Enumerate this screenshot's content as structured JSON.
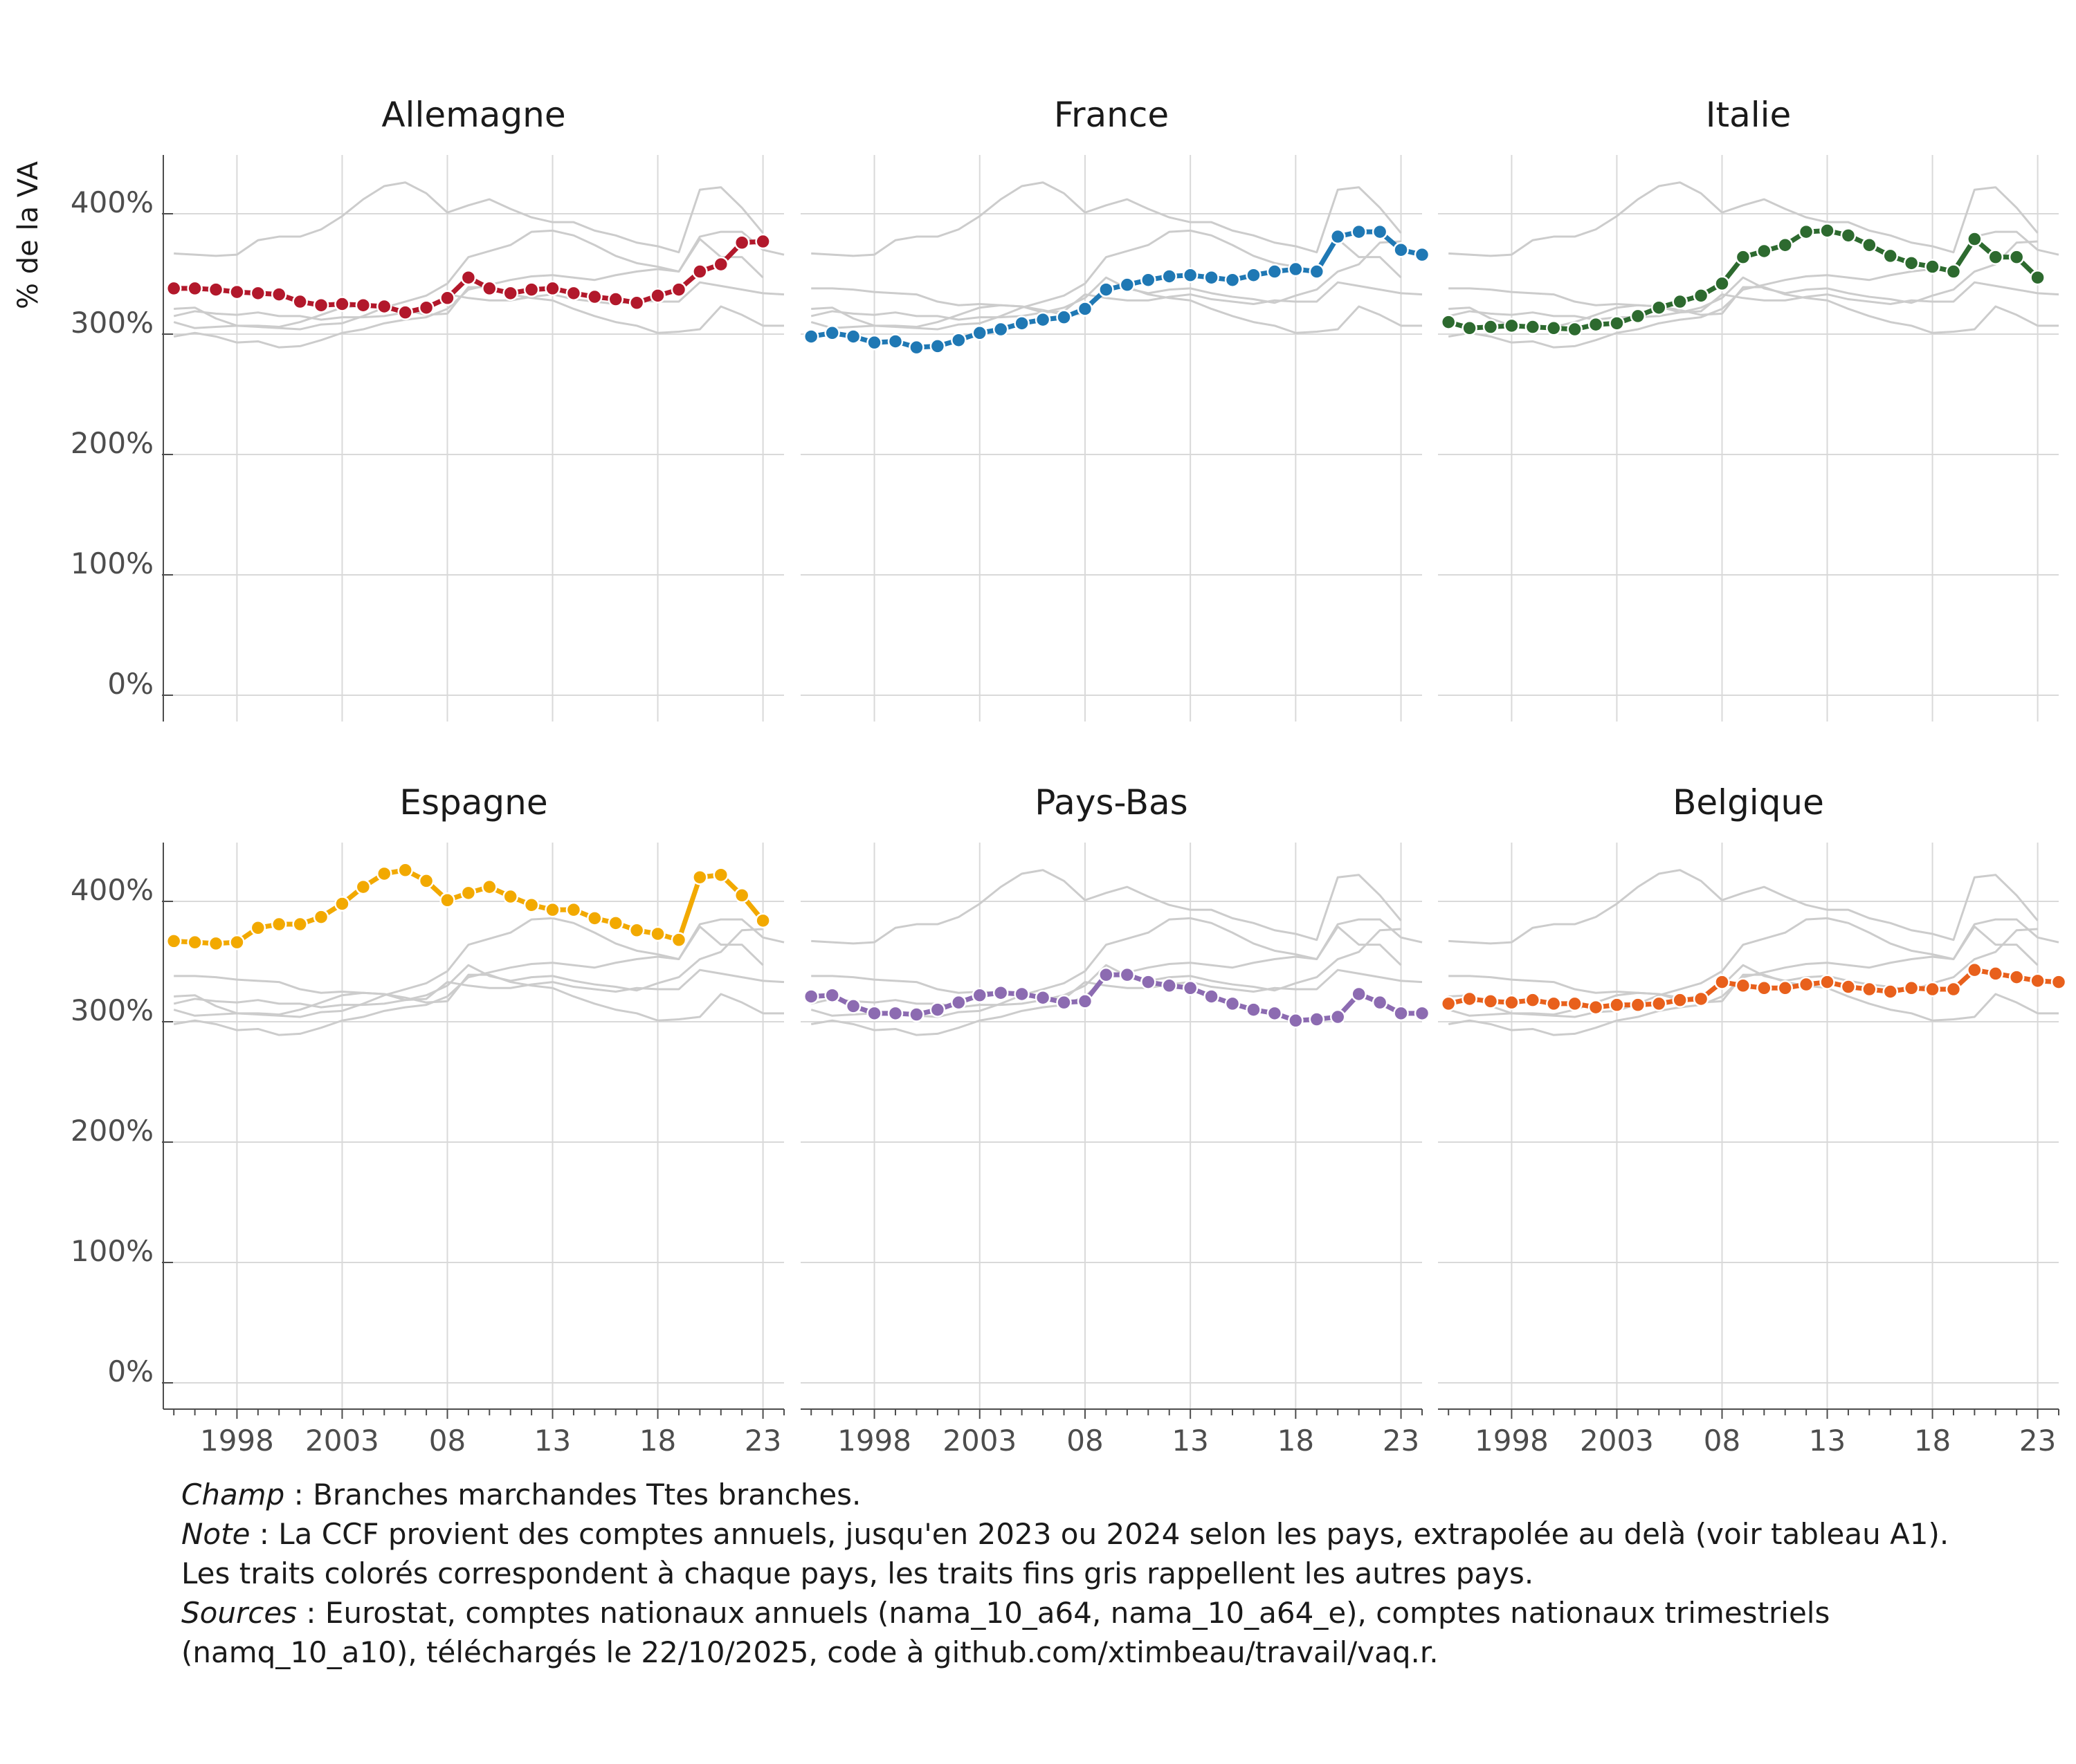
{
  "chart_data": {
    "type": "line",
    "ylabel": "% de la VA",
    "ylim": [
      0,
      450
    ],
    "xlim": [
      1994.5,
      2024
    ],
    "y_ticks": [
      0,
      100,
      200,
      300,
      400
    ],
    "y_tick_labels": [
      "0%",
      "100%",
      "200%",
      "300%",
      "400%"
    ],
    "x_ticks": [
      1998,
      2003,
      2008,
      2013,
      2018,
      2023
    ],
    "x_tick_labels": [
      "1998",
      "2003",
      "08",
      "13",
      "18",
      "23"
    ],
    "grid": true,
    "background_series_color": "#cccccc",
    "x": [
      1995,
      1996,
      1997,
      1998,
      1999,
      2000,
      2001,
      2002,
      2003,
      2004,
      2005,
      2006,
      2007,
      2008,
      2009,
      2010,
      2011,
      2012,
      2013,
      2014,
      2015,
      2016,
      2017,
      2018,
      2019,
      2020,
      2021,
      2022,
      2023,
      2024
    ],
    "panels": [
      {
        "title": "Allemagne",
        "color": "#b2182b",
        "values": [
          338,
          338,
          337,
          335,
          334,
          333,
          327,
          324,
          325,
          324,
          323,
          318,
          322,
          330,
          347,
          338,
          334,
          337,
          338,
          334,
          331,
          329,
          326,
          332,
          337,
          352,
          358,
          376,
          377,
          null
        ]
      },
      {
        "title": "France",
        "color": "#1f78b4",
        "values": [
          298,
          301,
          298,
          293,
          294,
          289,
          290,
          295,
          301,
          304,
          309,
          312,
          314,
          321,
          337,
          341,
          345,
          348,
          349,
          347,
          345,
          349,
          352,
          354,
          352,
          381,
          385,
          385,
          370,
          366
        ]
      },
      {
        "title": "Italie",
        "color": "#2d6a2f",
        "values": [
          310,
          305,
          306,
          307,
          306,
          305,
          304,
          308,
          309,
          315,
          322,
          327,
          332,
          342,
          364,
          369,
          374,
          385,
          386,
          382,
          374,
          365,
          359,
          356,
          352,
          379,
          364,
          364,
          347,
          null
        ]
      },
      {
        "title": "Espagne",
        "color": "#f2a900",
        "values": [
          367,
          366,
          365,
          366,
          378,
          381,
          381,
          387,
          398,
          412,
          423,
          426,
          417,
          401,
          407,
          412,
          404,
          397,
          393,
          393,
          386,
          382,
          376,
          373,
          368,
          420,
          422,
          405,
          384,
          null
        ]
      },
      {
        "title": "Pays-Bas",
        "color": "#8c6bb1",
        "values": [
          321,
          322,
          313,
          307,
          307,
          306,
          310,
          316,
          322,
          324,
          323,
          320,
          316,
          317,
          339,
          339,
          333,
          330,
          328,
          321,
          315,
          310,
          307,
          301,
          302,
          304,
          323,
          316,
          307,
          307
        ]
      },
      {
        "title": "Belgique",
        "color": "#e8601c",
        "values": [
          315,
          319,
          317,
          316,
          318,
          315,
          315,
          312,
          314,
          314,
          315,
          318,
          319,
          333,
          330,
          328,
          328,
          331,
          333,
          329,
          327,
          325,
          328,
          327,
          327,
          343,
          340,
          337,
          334,
          333
        ]
      }
    ]
  },
  "notes": {
    "champ_label": "Champ",
    "champ_text": " : Branches marchandes Ttes branches.",
    "note_label": "Note",
    "note_text": " : La CCF provient des comptes annuels, jusqu'en 2023 ou 2024 selon les pays, extrapolée au delà (voir tableau A1).",
    "note_line2": "Les traits colorés correspondent à chaque pays, les traits fins gris rappellent les autres pays.",
    "sources_label": "Sources",
    "sources_text": " : Eurostat, comptes nationaux annuels (nama_10_a64, nama_10_a64_e), comptes nationaux trimestriels",
    "sources_line2": "(namq_10_a10), téléchargés le 22/10/2025, code à github.com/xtimbeau/travail/vaq.r."
  }
}
